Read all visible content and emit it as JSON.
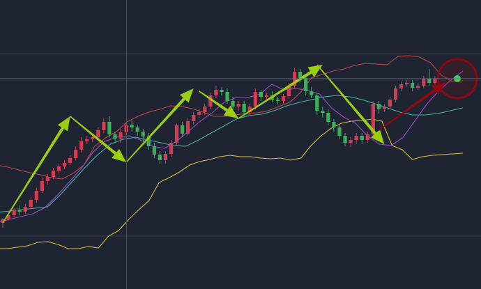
{
  "chart_data": {
    "type": "candlestick",
    "title": "",
    "xlabel": "",
    "ylabel": "",
    "ylim": [
      0,
      415
    ],
    "grid": true,
    "crosshair": {
      "x_index": 22,
      "y_value": 302
    },
    "colors": {
      "background": "#1f2433",
      "up_candle": "#d23c52",
      "down_candle": "#3fae58",
      "upper_band": "#c24a4a",
      "lower_band": "#d8c23a",
      "ma_fast": "#9b4fc4",
      "ma_slow": "#3fb8a8",
      "trend_arrow": "#9acd13",
      "last_arrow": "#8a0a12",
      "highlight_ring": "#8a0a12"
    },
    "candles": [
      [
        95,
        100,
        88,
        102
      ],
      [
        100,
        106,
        98,
        110
      ],
      [
        106,
        113,
        103,
        116
      ],
      [
        113,
        111,
        106,
        120
      ],
      [
        111,
        118,
        108,
        122
      ],
      [
        118,
        128,
        115,
        132
      ],
      [
        128,
        141,
        124,
        145
      ],
      [
        141,
        155,
        138,
        160
      ],
      [
        155,
        161,
        150,
        165
      ],
      [
        161,
        170,
        158,
        174
      ],
      [
        170,
        176,
        166,
        180
      ],
      [
        176,
        181,
        172,
        185
      ],
      [
        181,
        188,
        178,
        192
      ],
      [
        188,
        200,
        185,
        205
      ],
      [
        200,
        212,
        196,
        218
      ],
      [
        212,
        215,
        208,
        220
      ],
      [
        215,
        218,
        211,
        222
      ],
      [
        218,
        228,
        214,
        232
      ],
      [
        228,
        240,
        224,
        245
      ],
      [
        240,
        222,
        218,
        248
      ],
      [
        222,
        216,
        212,
        226
      ],
      [
        216,
        225,
        210,
        230
      ],
      [
        225,
        236,
        220,
        240
      ],
      [
        236,
        232,
        226,
        242
      ],
      [
        232,
        226,
        220,
        236
      ],
      [
        226,
        219,
        212,
        230
      ],
      [
        219,
        205,
        200,
        224
      ],
      [
        205,
        193,
        188,
        210
      ],
      [
        193,
        185,
        180,
        198
      ],
      [
        185,
        194,
        180,
        198
      ],
      [
        194,
        210,
        190,
        214
      ],
      [
        210,
        235,
        206,
        238
      ],
      [
        235,
        223,
        218,
        240
      ],
      [
        223,
        241,
        220,
        246
      ],
      [
        241,
        250,
        236,
        254
      ],
      [
        250,
        254,
        246,
        258
      ],
      [
        254,
        262,
        250,
        266
      ],
      [
        262,
        278,
        258,
        282
      ],
      [
        278,
        286,
        274,
        292
      ],
      [
        286,
        283,
        278,
        290
      ],
      [
        283,
        270,
        266,
        288
      ],
      [
        270,
        262,
        258,
        276
      ],
      [
        262,
        266,
        256,
        270
      ],
      [
        266,
        254,
        250,
        270
      ],
      [
        254,
        262,
        250,
        266
      ],
      [
        262,
        283,
        258,
        288
      ],
      [
        283,
        276,
        270,
        286
      ],
      [
        276,
        278,
        272,
        282
      ],
      [
        278,
        272,
        268,
        284
      ],
      [
        272,
        270,
        265,
        276
      ],
      [
        270,
        277,
        266,
        280
      ],
      [
        277,
        292,
        273,
        296
      ],
      [
        292,
        312,
        288,
        318
      ],
      [
        312,
        303,
        298,
        316
      ],
      [
        303,
        284,
        278,
        308
      ],
      [
        284,
        278,
        274,
        290
      ],
      [
        278,
        256,
        250,
        282
      ],
      [
        256,
        253,
        246,
        262
      ],
      [
        253,
        240,
        235,
        258
      ],
      [
        240,
        232,
        226,
        244
      ],
      [
        232,
        220,
        215,
        236
      ],
      [
        220,
        210,
        205,
        224
      ],
      [
        210,
        214,
        204,
        218
      ],
      [
        214,
        220,
        208,
        224
      ],
      [
        220,
        214,
        208,
        224
      ],
      [
        214,
        222,
        210,
        226
      ],
      [
        222,
        266,
        218,
        270
      ],
      [
        266,
        258,
        252,
        270
      ],
      [
        258,
        262,
        254,
        266
      ],
      [
        262,
        272,
        258,
        276
      ],
      [
        272,
        288,
        268,
        292
      ],
      [
        288,
        294,
        284,
        298
      ],
      [
        294,
        296,
        290,
        300
      ],
      [
        296,
        289,
        284,
        300
      ],
      [
        289,
        292,
        286,
        296
      ],
      [
        292,
        302,
        288,
        306
      ],
      [
        302,
        296,
        292,
        316
      ],
      [
        296,
        302,
        292,
        306
      ]
    ],
    "upper_band": [
      178,
      175,
      171,
      167,
      164,
      160,
      158,
      166,
      178,
      205,
      217,
      226,
      240,
      248,
      254,
      258,
      263,
      262,
      259,
      254,
      248,
      248,
      250,
      252,
      253,
      256,
      262,
      268,
      282,
      303,
      308,
      313,
      316,
      321,
      324,
      323,
      322,
      334,
      335,
      333,
      325,
      307,
      298,
      299
    ],
    "lower_band": [
      58,
      58,
      60,
      62,
      67,
      68,
      64,
      58,
      58,
      61,
      59,
      76,
      84,
      100,
      114,
      127,
      153,
      160,
      168,
      178,
      183,
      186,
      190,
      192,
      190,
      190,
      188,
      187,
      188,
      185,
      188,
      206,
      220,
      231,
      238,
      241,
      242,
      244,
      241,
      206,
      200,
      186,
      190,
      192,
      193,
      194,
      195
    ],
    "ma_fast": [
      95,
      100,
      104,
      108,
      117,
      134,
      153,
      172,
      196,
      212,
      218,
      220,
      214,
      205,
      202,
      212,
      226,
      241,
      253,
      268,
      275,
      275,
      280,
      294,
      286,
      288,
      285,
      280,
      260,
      247,
      238,
      220,
      208,
      206,
      218,
      242,
      266,
      285,
      300,
      313
    ],
    "ma_slow": [
      110,
      112,
      114,
      116,
      118,
      135,
      155,
      175,
      193,
      208,
      215,
      218,
      214,
      210,
      206,
      205,
      214,
      224,
      234,
      244,
      249,
      251,
      256,
      263,
      268,
      272,
      276,
      278,
      276,
      272,
      266,
      260,
      254,
      250,
      250,
      252,
      256,
      260
    ],
    "arrows": [
      {
        "from": [
          0,
          95
        ],
        "to": [
          12,
          248
        ],
        "kind": "trend"
      },
      {
        "from": [
          12,
          248
        ],
        "to": [
          22,
          182
        ],
        "kind": "trend"
      },
      {
        "from": [
          22,
          182
        ],
        "to": [
          34,
          288
        ],
        "kind": "trend"
      },
      {
        "from": [
          35,
          284
        ],
        "to": [
          42,
          245
        ],
        "kind": "trend"
      },
      {
        "from": [
          42,
          245
        ],
        "to": [
          57,
          322
        ],
        "kind": "trend"
      },
      {
        "from": [
          56,
          322
        ],
        "to": [
          68,
          208
        ],
        "kind": "trend"
      },
      {
        "from": [
          67,
          228
        ],
        "to": [
          79,
          297
        ],
        "kind": "last"
      }
    ],
    "highlight": {
      "x_index": 81,
      "y_value": 302
    }
  }
}
